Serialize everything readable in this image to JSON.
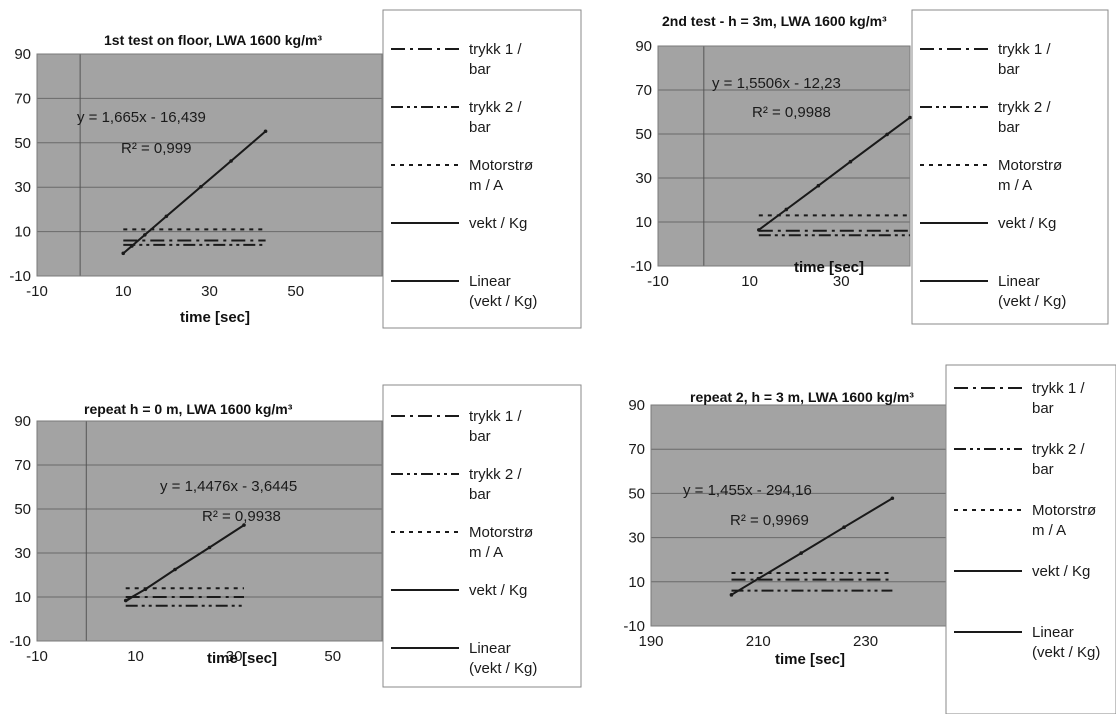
{
  "chart_data": [
    {
      "type": "line",
      "title": "1st test on floor, LWA 1600 kg/m³",
      "xlabel": "time [sec]",
      "ylabel": "",
      "xlim": [
        -10,
        70
      ],
      "ylim": [
        -10,
        90
      ],
      "x_ticks": [
        "-10",
        "10",
        "30",
        "50"
      ],
      "y_ticks": [
        "-10",
        "10",
        "30",
        "50",
        "70",
        "90"
      ],
      "grid": true,
      "legend_position": "right",
      "equation": "y = 1,665x - 16,439",
      "r2": "R² = 0,999",
      "series": [
        {
          "name": "trykk 1 / bar",
          "style": "dash-dot",
          "x": [
            10,
            43
          ],
          "y": [
            6,
            6
          ]
        },
        {
          "name": "trykk 2 / bar",
          "style": "dash-dot-dot",
          "x": [
            10,
            43
          ],
          "y": [
            4,
            4
          ]
        },
        {
          "name": "Motorstrø m / A",
          "style": "dotted",
          "x": [
            10,
            43
          ],
          "y": [
            11,
            11
          ]
        },
        {
          "name": "vekt / Kg",
          "style": "solid",
          "x": [
            10,
            12,
            15,
            20,
            28,
            35,
            43
          ],
          "y": [
            0.2,
            3.5,
            8.5,
            16.9,
            30.2,
            41.8,
            55.2
          ]
        },
        {
          "name": "Linear (vekt / Kg)",
          "style": "solid",
          "x": [
            10,
            43
          ],
          "y": [
            0.21,
            55.2
          ]
        }
      ]
    },
    {
      "type": "line",
      "title": "2nd test - h = 3m, LWA 1600 kg/m³",
      "xlabel": "time [sec]",
      "ylabel": "",
      "xlim": [
        -10,
        45
      ],
      "ylim": [
        -10,
        90
      ],
      "x_ticks": [
        "-10",
        "10",
        "30"
      ],
      "y_ticks": [
        "-10",
        "10",
        "30",
        "50",
        "70",
        "90"
      ],
      "grid": true,
      "legend_position": "right",
      "equation": "y = 1,5506x - 12,23",
      "r2": "R² = 0,9988",
      "series": [
        {
          "name": "trykk 1 / bar",
          "style": "dash-dot",
          "x": [
            12,
            45
          ],
          "y": [
            6,
            6
          ]
        },
        {
          "name": "trykk 2 / bar",
          "style": "dash-dot-dot",
          "x": [
            12,
            45
          ],
          "y": [
            4,
            4
          ]
        },
        {
          "name": "Motorstrø m / A",
          "style": "dotted",
          "x": [
            12,
            45
          ],
          "y": [
            13,
            13
          ]
        },
        {
          "name": "vekt / Kg",
          "style": "solid",
          "x": [
            12,
            18,
            25,
            32,
            40,
            45
          ],
          "y": [
            6.4,
            15.7,
            26.5,
            37.4,
            49.8,
            57.5
          ]
        },
        {
          "name": "Linear (vekt / Kg)",
          "style": "solid",
          "x": [
            12,
            45
          ],
          "y": [
            6.4,
            57.5
          ]
        }
      ]
    },
    {
      "type": "line",
      "title": "repeat h = 0 m, LWA 1600 kg/m³",
      "xlabel": "time [sec]",
      "ylabel": "",
      "xlim": [
        -10,
        60
      ],
      "ylim": [
        -10,
        90
      ],
      "x_ticks": [
        "-10",
        "10",
        "30",
        "50"
      ],
      "y_ticks": [
        "-10",
        "10",
        "30",
        "50",
        "70",
        "90"
      ],
      "grid": true,
      "legend_position": "right",
      "equation": "y = 1,4476x - 3,6445",
      "r2": "R² = 0,9938",
      "series": [
        {
          "name": "trykk 1 / bar",
          "style": "dash-dot",
          "x": [
            8,
            32
          ],
          "y": [
            10,
            10
          ]
        },
        {
          "name": "trykk 2 / bar",
          "style": "dash-dot-dot",
          "x": [
            8,
            32
          ],
          "y": [
            6,
            6
          ]
        },
        {
          "name": "Motorstrø m / A",
          "style": "dotted",
          "x": [
            8,
            32
          ],
          "y": [
            14,
            14
          ]
        },
        {
          "name": "vekt / Kg",
          "style": "solid",
          "x": [
            8,
            12,
            18,
            25,
            32
          ],
          "y": [
            8.4,
            13.5,
            22.5,
            32.5,
            42.7
          ]
        },
        {
          "name": "Linear (vekt / Kg)",
          "style": "solid",
          "x": [
            8,
            32
          ],
          "y": [
            7.9,
            42.7
          ]
        }
      ]
    },
    {
      "type": "line",
      "title": "repeat 2, h = 3 m, LWA 1600 kg/m³",
      "xlabel": "time [sec]",
      "ylabel": "",
      "xlim": [
        190,
        245
      ],
      "ylim": [
        -10,
        90
      ],
      "x_ticks": [
        "190",
        "210",
        "230"
      ],
      "y_ticks": [
        "-10",
        "10",
        "30",
        "50",
        "70",
        "90"
      ],
      "grid": true,
      "legend_position": "right",
      "equation": "y = 1,455x - 294,16",
      "r2": "R² = 0,9969",
      "series": [
        {
          "name": "trykk 1 / bar",
          "style": "dash-dot",
          "x": [
            205,
            235
          ],
          "y": [
            11,
            11
          ]
        },
        {
          "name": "trykk 2 / bar",
          "style": "dash-dot-dot",
          "x": [
            205,
            235
          ],
          "y": [
            6,
            6
          ]
        },
        {
          "name": "Motorstrø m / A",
          "style": "dotted",
          "x": [
            205,
            235
          ],
          "y": [
            14,
            14
          ]
        },
        {
          "name": "vekt / Kg",
          "style": "solid",
          "x": [
            205,
            210,
            218,
            226,
            235
          ],
          "y": [
            4.1,
            11.4,
            23.0,
            34.7,
            47.8
          ]
        },
        {
          "name": "Linear (vekt / Kg)",
          "style": "solid",
          "x": [
            205,
            235
          ],
          "y": [
            4.1,
            47.8
          ]
        }
      ]
    }
  ],
  "colors": {
    "plot_area": "#a3a3a3",
    "series": "#1a1a1a"
  }
}
